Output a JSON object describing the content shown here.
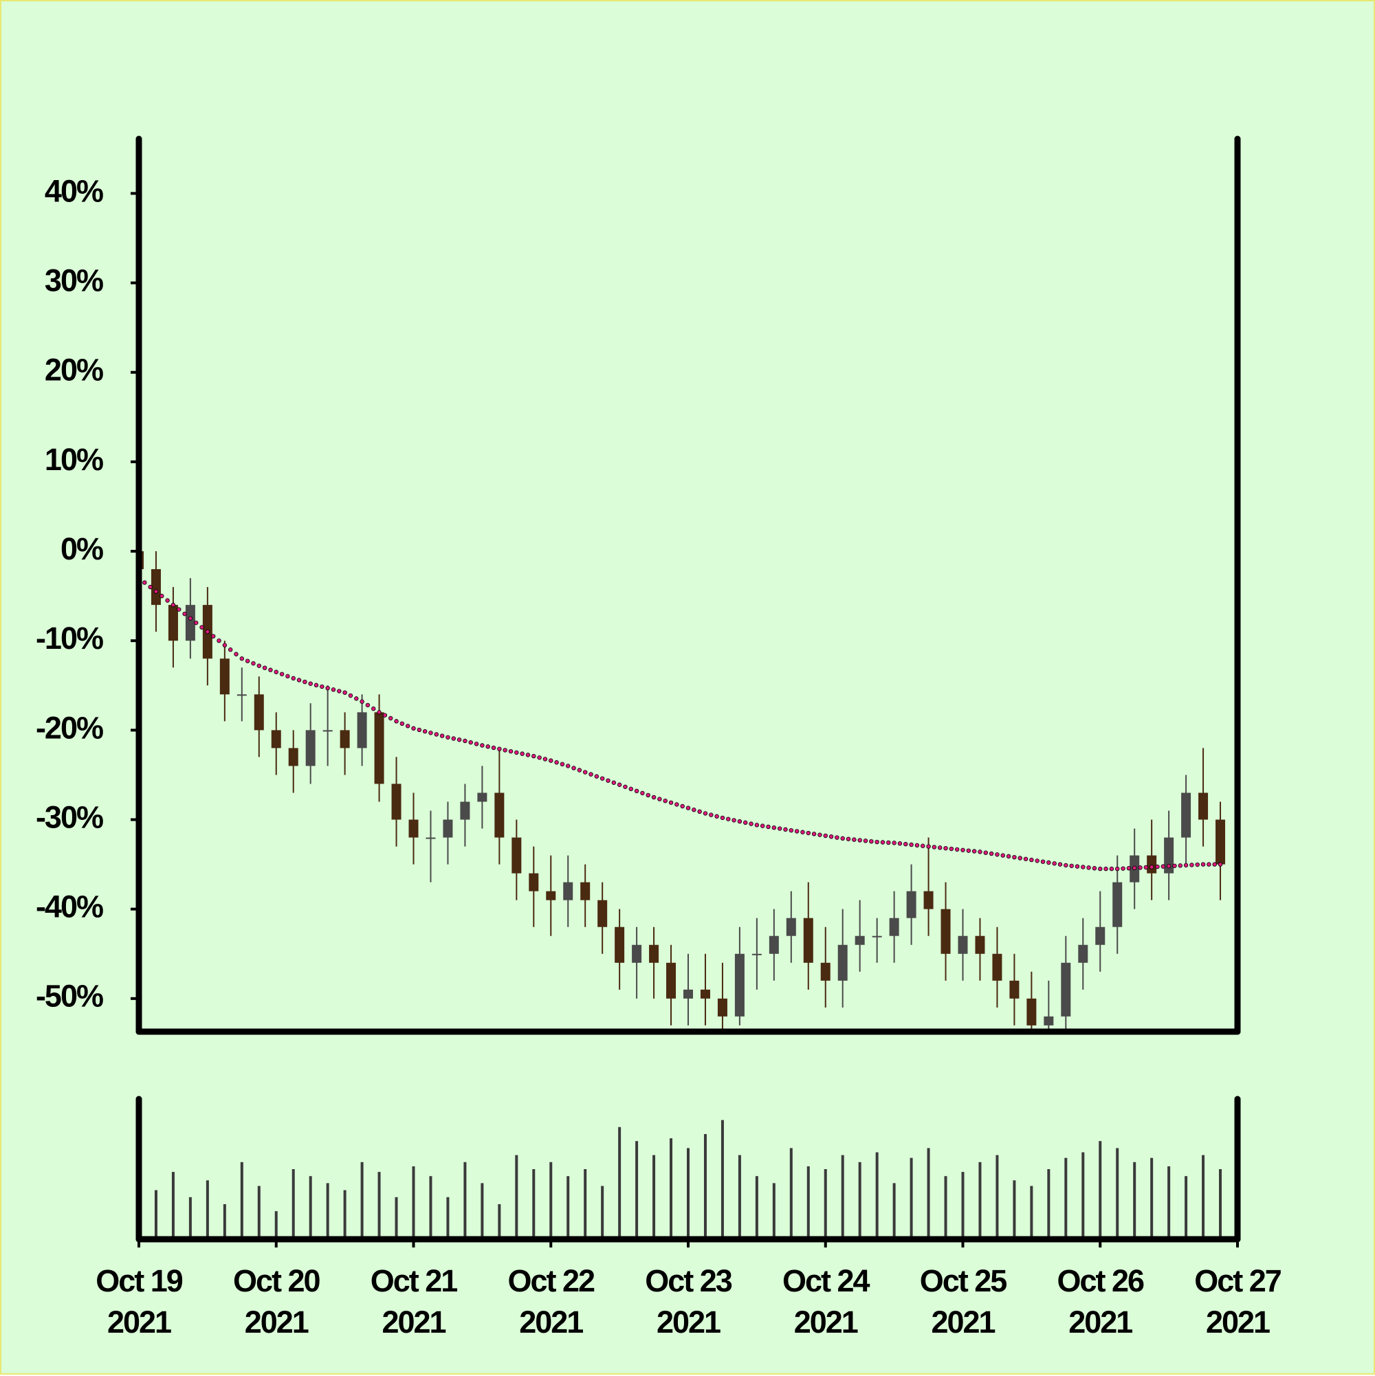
{
  "chart_data": {
    "type": "candlestick",
    "x": [
      "2021-10-19T00:00",
      "2021-10-19T03:00",
      "2021-10-19T06:00",
      "2021-10-19T09:00",
      "2021-10-19T12:00",
      "2021-10-19T15:00",
      "2021-10-19T18:00",
      "2021-10-19T21:00",
      "2021-10-20T00:00",
      "2021-10-20T03:00",
      "2021-10-20T06:00",
      "2021-10-20T09:00",
      "2021-10-20T12:00",
      "2021-10-20T15:00",
      "2021-10-20T18:00",
      "2021-10-20T21:00",
      "2021-10-21T00:00",
      "2021-10-21T03:00",
      "2021-10-21T06:00",
      "2021-10-21T09:00",
      "2021-10-21T12:00",
      "2021-10-21T15:00",
      "2021-10-21T18:00",
      "2021-10-21T21:00",
      "2021-10-22T00:00",
      "2021-10-22T03:00",
      "2021-10-22T06:00",
      "2021-10-22T09:00",
      "2021-10-22T12:00",
      "2021-10-22T15:00",
      "2021-10-22T18:00",
      "2021-10-22T21:00",
      "2021-10-23T00:00",
      "2021-10-23T03:00",
      "2021-10-23T06:00",
      "2021-10-23T09:00",
      "2021-10-23T12:00",
      "2021-10-23T15:00",
      "2021-10-23T18:00",
      "2021-10-23T21:00",
      "2021-10-24T00:00",
      "2021-10-24T03:00",
      "2021-10-24T06:00",
      "2021-10-24T09:00",
      "2021-10-24T12:00",
      "2021-10-24T15:00",
      "2021-10-24T18:00",
      "2021-10-24T21:00",
      "2021-10-25T00:00",
      "2021-10-25T03:00",
      "2021-10-25T06:00",
      "2021-10-25T09:00",
      "2021-10-25T12:00",
      "2021-10-25T15:00",
      "2021-10-25T18:00",
      "2021-10-25T21:00",
      "2021-10-26T00:00",
      "2021-10-26T03:00",
      "2021-10-26T06:00",
      "2021-10-26T09:00",
      "2021-10-26T12:00",
      "2021-10-26T15:00",
      "2021-10-26T18:00",
      "2021-10-26T21:00"
    ],
    "open": [
      0,
      -2,
      -6,
      -10,
      -6,
      -12,
      -16,
      -16,
      -20,
      -22,
      -24,
      -20,
      -20,
      -22,
      -18,
      -26,
      -30,
      -32,
      -32,
      -30,
      -28,
      -27,
      -32,
      -36,
      -38,
      -39,
      -37,
      -39,
      -42,
      -46,
      -44,
      -46,
      -50,
      -49,
      -50,
      -52,
      -45,
      -45,
      -43,
      -41,
      -46,
      -48,
      -44,
      -43,
      -43,
      -41,
      -38,
      -40,
      -45,
      -43,
      -45,
      -48,
      -50,
      -53,
      -52,
      -46,
      -44,
      -42,
      -37,
      -34,
      -36,
      -32,
      -27,
      -30
    ],
    "high": [
      0,
      0,
      -4,
      -3,
      -4,
      -10,
      -13,
      -14,
      -18,
      -20,
      -17,
      -15,
      -18,
      -16,
      -16,
      -23,
      -27,
      -29,
      -28,
      -26,
      -24,
      -22,
      -30,
      -33,
      -34,
      -34,
      -35,
      -37,
      -40,
      -42,
      -42,
      -44,
      -45,
      -45,
      -46,
      -42,
      -41,
      -40,
      -38,
      -37,
      -42,
      -40,
      -39,
      -41,
      -38,
      -35,
      -32,
      -37,
      -40,
      -41,
      -42,
      -45,
      -47,
      -48,
      -43,
      -41,
      -38,
      -34,
      -31,
      -30,
      -29,
      -25,
      -22,
      -28
    ],
    "low": [
      -5,
      -9,
      -13,
      -12,
      -15,
      -19,
      -19,
      -23,
      -25,
      -27,
      -26,
      -24,
      -25,
      -24,
      -28,
      -33,
      -35,
      -37,
      -35,
      -33,
      -31,
      -35,
      -39,
      -42,
      -43,
      -42,
      -42,
      -45,
      -49,
      -50,
      -50,
      -53,
      -53,
      -53,
      -53.5,
      -53,
      -49,
      -48,
      -46,
      -49,
      -51,
      -51,
      -47,
      -46,
      -46,
      -44,
      -43,
      -48,
      -48,
      -48,
      -51,
      -53,
      -53.5,
      -53.5,
      -53.5,
      -49,
      -47,
      -45,
      -40,
      -39,
      -39,
      -35,
      -33,
      -39
    ],
    "close": [
      -2,
      -6,
      -10,
      -6,
      -12,
      -16,
      -16,
      -20,
      -22,
      -24,
      -20,
      -20,
      -22,
      -18,
      -26,
      -30,
      -32,
      -32,
      -30,
      -28,
      -27,
      -32,
      -36,
      -38,
      -39,
      -37,
      -39,
      -42,
      -46,
      -44,
      -46,
      -50,
      -49,
      -50,
      -52,
      -45,
      -45,
      -43,
      -41,
      -46,
      -48,
      -44,
      -43,
      -43,
      -41,
      -38,
      -40,
      -45,
      -43,
      -45,
      -48,
      -50,
      -53,
      -52,
      -46,
      -44,
      -42,
      -37,
      -34,
      -36,
      -32,
      -27,
      -30,
      -35
    ],
    "volume": [
      12,
      35,
      48,
      30,
      42,
      25,
      55,
      38,
      20,
      50,
      45,
      40,
      35,
      55,
      48,
      30,
      52,
      45,
      30,
      55,
      40,
      25,
      60,
      50,
      55,
      45,
      50,
      38,
      80,
      70,
      60,
      72,
      65,
      75,
      85,
      60,
      45,
      40,
      65,
      52,
      50,
      60,
      55,
      62,
      40,
      58,
      65,
      45,
      48,
      55,
      60,
      42,
      38,
      50,
      58,
      62,
      70,
      65,
      55,
      58,
      52,
      45,
      60,
      50
    ],
    "moving_average": [
      -3,
      -4.5,
      -6,
      -7.5,
      -9,
      -10.5,
      -12,
      -12.8,
      -13.5,
      -14.2,
      -14.8,
      -15.3,
      -15.8,
      -16.8,
      -18,
      -19,
      -19.8,
      -20.3,
      -20.8,
      -21.2,
      -21.7,
      -22.1,
      -22.5,
      -22.9,
      -23.4,
      -24,
      -24.7,
      -25.4,
      -26.1,
      -26.8,
      -27.5,
      -28.1,
      -28.7,
      -29.3,
      -29.8,
      -30.2,
      -30.6,
      -30.9,
      -31.2,
      -31.5,
      -31.8,
      -32.1,
      -32.3,
      -32.5,
      -32.6,
      -32.8,
      -33,
      -33.2,
      -33.4,
      -33.6,
      -33.9,
      -34.2,
      -34.5,
      -34.8,
      -35.1,
      -35.3,
      -35.5,
      -35.5,
      -35.4,
      -35.3,
      -35.2,
      -35.1,
      -35,
      -35
    ],
    "up_color": "#4a4a4a",
    "down_color": "#4a2a10",
    "ma_color": "#e0197d",
    "volume_color": "#3a3a3a",
    "xlim": [
      "2021-10-19T00:00",
      "2021-10-27T00:00"
    ],
    "xticks": [
      {
        "value": "2021-10-19T00:00",
        "label": "Oct 19\n2021"
      },
      {
        "value": "2021-10-20T00:00",
        "label": "Oct 20\n2021"
      },
      {
        "value": "2021-10-21T00:00",
        "label": "Oct 21\n2021"
      },
      {
        "value": "2021-10-22T00:00",
        "label": "Oct 22\n2021"
      },
      {
        "value": "2021-10-23T00:00",
        "label": "Oct 23\n2021"
      },
      {
        "value": "2021-10-24T00:00",
        "label": "Oct 24\n2021"
      },
      {
        "value": "2021-10-25T00:00",
        "label": "Oct 25\n2021"
      },
      {
        "value": "2021-10-26T00:00",
        "label": "Oct 26\n2021"
      },
      {
        "value": "2021-10-27T00:00",
        "label": "Oct 27\n2021"
      }
    ],
    "ylim": [
      -53.7,
      46.1
    ],
    "yticks": [
      {
        "value": -50,
        "label": "-50%"
      },
      {
        "value": -40,
        "label": "-40%"
      },
      {
        "value": -30,
        "label": "-30%"
      },
      {
        "value": -20,
        "label": "-20%"
      },
      {
        "value": -10,
        "label": "-10%"
      },
      {
        "value": 0,
        "label": "0%"
      },
      {
        "value": 10,
        "label": "10%"
      },
      {
        "value": 20,
        "label": "20%"
      },
      {
        "value": 30,
        "label": "30%"
      },
      {
        "value": 40,
        "label": "40%"
      }
    ],
    "volume_ylim": [
      0,
      100
    ]
  }
}
